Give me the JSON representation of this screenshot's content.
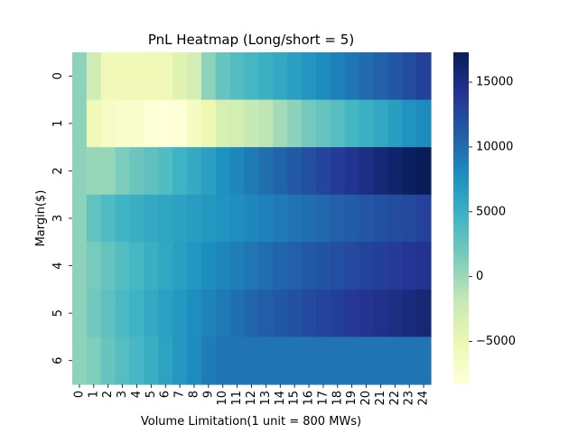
{
  "chart_data": {
    "type": "heatmap",
    "title": "PnL Heatmap (Long/short = 5)",
    "xlabel": "Volume Limitation(1 unit = 800 MWs)",
    "ylabel": "Margin($)",
    "x_categories": [
      "0",
      "1",
      "2",
      "3",
      "4",
      "5",
      "6",
      "7",
      "8",
      "9",
      "10",
      "11",
      "12",
      "13",
      "14",
      "15",
      "16",
      "17",
      "18",
      "19",
      "20",
      "21",
      "22",
      "23",
      "24"
    ],
    "y_categories": [
      "0",
      "1",
      "2",
      "3",
      "4",
      "5",
      "6"
    ],
    "values": [
      [
        700,
        -2500,
        -5600,
        -5600,
        -5600,
        -5600,
        -5600,
        -4000,
        -3000,
        700,
        2500,
        3500,
        4200,
        5000,
        5700,
        6500,
        7300,
        8000,
        8700,
        9400,
        10100,
        10800,
        11500,
        12300,
        13100
      ],
      [
        700,
        -5600,
        -6800,
        -7200,
        -7500,
        -7800,
        -8300,
        -8100,
        -6500,
        -5200,
        -3200,
        -2900,
        -1900,
        -1500,
        -300,
        700,
        1800,
        2600,
        3400,
        4300,
        5000,
        5800,
        6600,
        7400,
        8100
      ],
      [
        700,
        300,
        300,
        1500,
        2300,
        3000,
        3700,
        4800,
        5500,
        6400,
        7600,
        8300,
        9100,
        9800,
        10500,
        11200,
        12000,
        12800,
        13600,
        14300,
        15000,
        15700,
        16300,
        16900,
        17300
      ],
      [
        700,
        2800,
        3800,
        4700,
        5100,
        5600,
        6000,
        6300,
        6700,
        7100,
        7400,
        7900,
        8300,
        8700,
        9100,
        9500,
        9900,
        10300,
        10700,
        11100,
        11500,
        11900,
        12300,
        12600,
        13000
      ],
      [
        700,
        1700,
        2600,
        3500,
        4300,
        5100,
        5800,
        6500,
        7200,
        7800,
        8400,
        8900,
        9400,
        9900,
        10400,
        10800,
        11300,
        11700,
        12100,
        12500,
        12900,
        13300,
        13600,
        14000,
        14300
      ],
      [
        700,
        2000,
        3000,
        4000,
        4800,
        5600,
        6400,
        7100,
        7800,
        8500,
        9200,
        9800,
        10400,
        10900,
        11400,
        11900,
        12400,
        12900,
        13300,
        13800,
        14200,
        14600,
        15000,
        15400,
        15800
      ],
      [
        700,
        1300,
        2500,
        3400,
        4200,
        5200,
        6200,
        7100,
        8000,
        9000,
        9500,
        9500,
        9500,
        9500,
        9500,
        9500,
        9500,
        9500,
        9500,
        9500,
        9500,
        9500,
        9500,
        9500,
        9500
      ]
    ],
    "vmin": -8300,
    "vmax": 17300,
    "colorbar_ticks": [
      -5000,
      0,
      5000,
      10000,
      15000
    ],
    "colormap": "YlGnBu",
    "grid": false,
    "legend": "colorbar-right"
  }
}
